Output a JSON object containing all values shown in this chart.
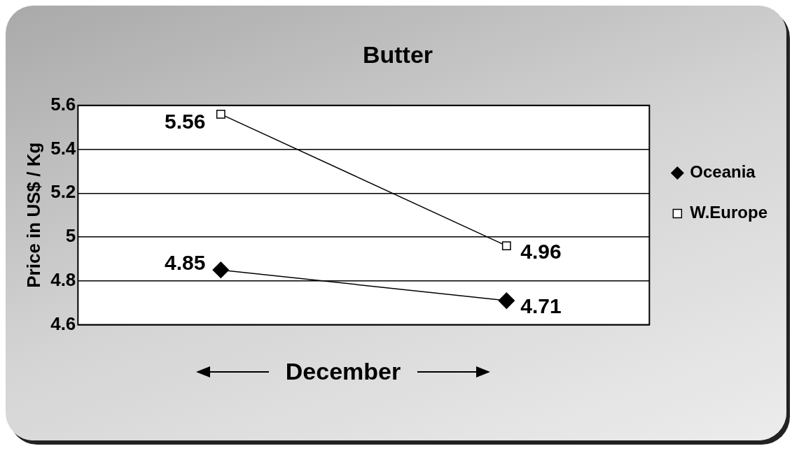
{
  "chart_data": {
    "type": "line",
    "title": "Butter",
    "xlabel": "December",
    "ylabel": "Price in US$ / Kg",
    "categories": [
      null,
      null
    ],
    "series": [
      {
        "name": "Oceania",
        "color": "#000000",
        "marker": "diamond",
        "values": [
          4.85,
          4.71
        ]
      },
      {
        "name": "W.Europe",
        "color": "#000000",
        "marker": "square",
        "values": [
          5.56,
          4.96
        ]
      }
    ],
    "ylim": [
      4.6,
      5.6
    ],
    "yticks": [
      4.6,
      4.8,
      5,
      5.2,
      5.4,
      5.6
    ],
    "grid": "y",
    "legend": "right",
    "data_labels": true
  }
}
